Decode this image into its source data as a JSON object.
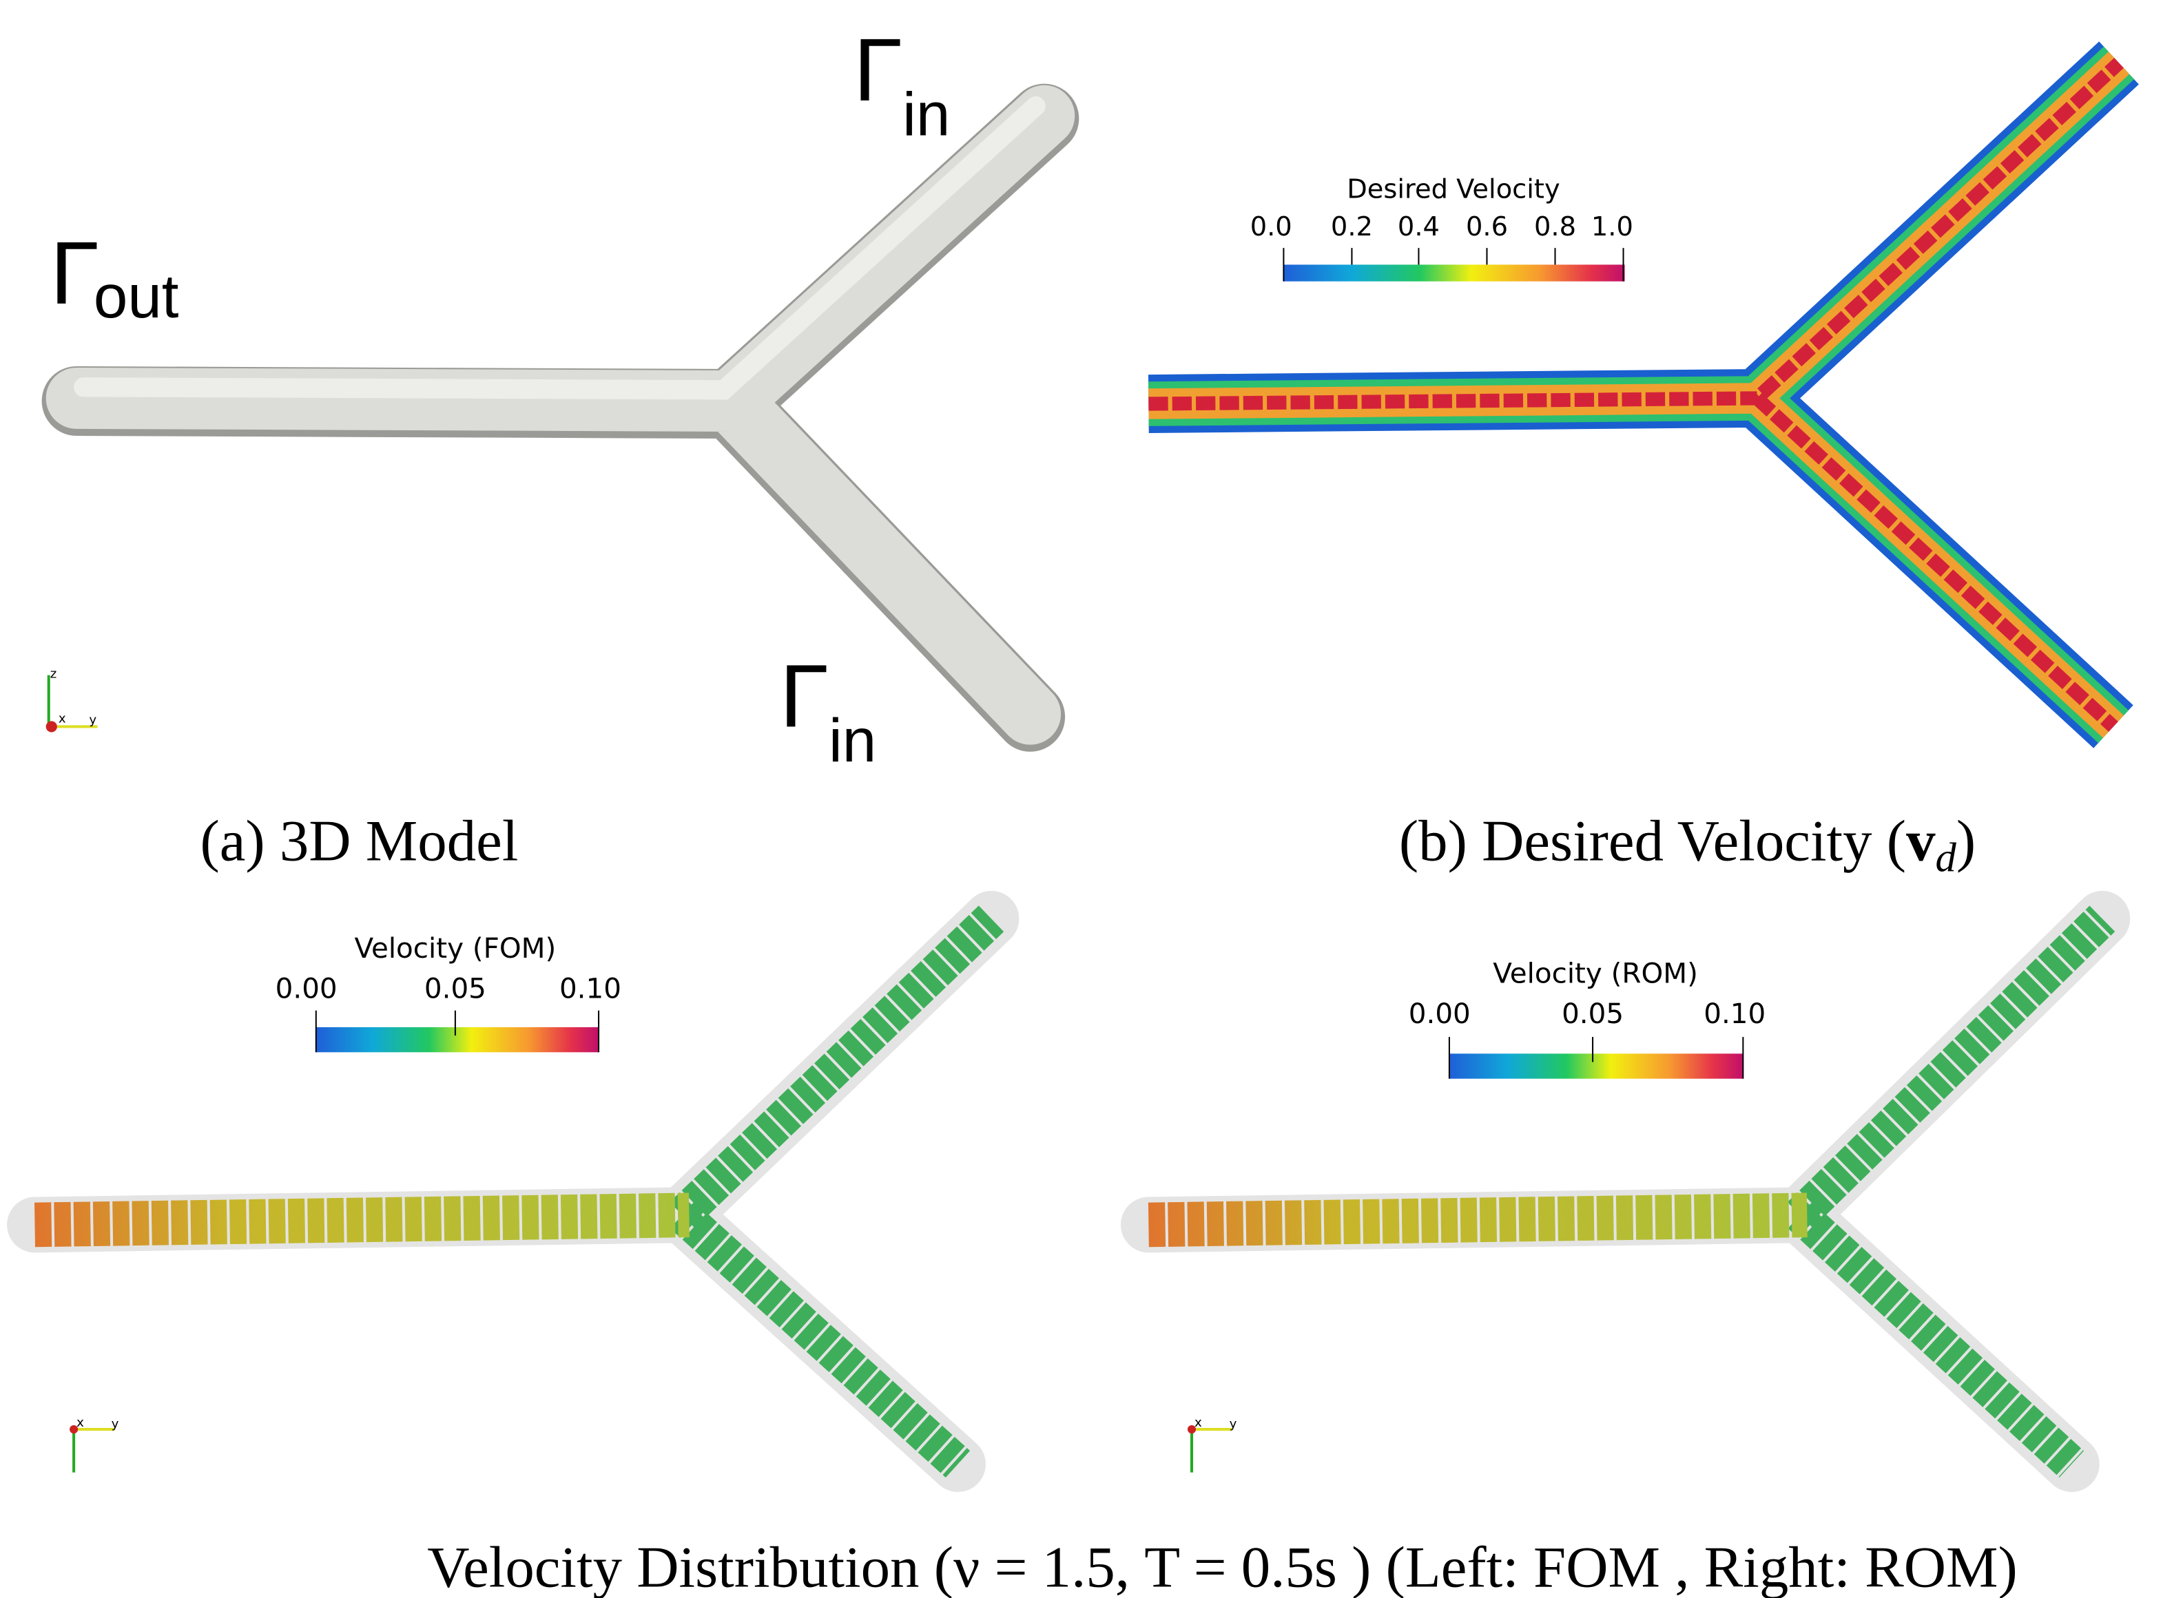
{
  "panel_a": {
    "caption": "(a) 3D Model",
    "boundary_labels": [
      {
        "symbol": "Γ",
        "sub": "in"
      },
      {
        "symbol": "Γ",
        "sub": "out"
      },
      {
        "symbol": "Γ",
        "sub": "in"
      }
    ],
    "axes": [
      "z",
      "x",
      "y"
    ]
  },
  "panel_b": {
    "caption": {
      "prefix": "(b) Desired Velocity (",
      "vector": "v",
      "sub": "d",
      "suffix": ")"
    },
    "colorbar": {
      "title": "Desired Velocity",
      "ticks": [
        "0.0",
        "0.2",
        "0.4",
        "0.6",
        "0.8",
        "1.0"
      ]
    }
  },
  "panel_c": {
    "colorbar": {
      "title": "Velocity (FOM)",
      "ticks": [
        "0.00",
        "0.05",
        "0.10"
      ]
    },
    "axes": [
      "x",
      "y"
    ]
  },
  "panel_d": {
    "colorbar": {
      "title": "Velocity (ROM)",
      "ticks": [
        "0.00",
        "0.05",
        "0.10"
      ]
    },
    "axes": [
      "x",
      "y"
    ]
  },
  "caption": "Velocity Distribution (ν = 1.5, T = 0.5s ) (Left: FOM , Right: ROM)"
}
